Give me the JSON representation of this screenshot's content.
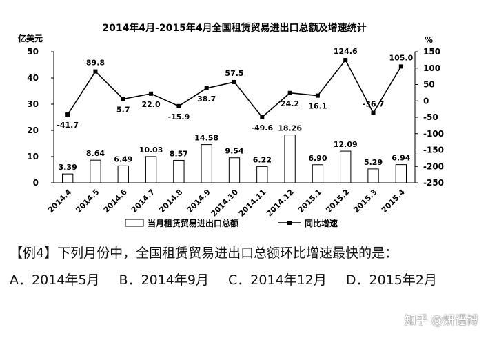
{
  "chart_data": {
    "type": "bar",
    "title": "2014年4月-2015年4月全国租赁贸易进出口总额及增速统计",
    "ylabel_left": "亿美元",
    "ylabel_right": "%",
    "ylim_left": [
      0,
      50
    ],
    "ylim_right": [
      -250,
      150
    ],
    "yticks_left": [
      "0",
      "10",
      "20",
      "30",
      "40",
      "50"
    ],
    "yticks_right": [
      "-250",
      "-200",
      "-150",
      "-100",
      "-50",
      "0",
      "50",
      "100",
      "150"
    ],
    "categories": [
      "2014.4",
      "2014.5",
      "2014.6",
      "2014.7",
      "2014.8",
      "2014.9",
      "2014.10",
      "2014.11",
      "2014.12",
      "2015.1",
      "2015.2",
      "2015.3",
      "2015.4"
    ],
    "series": [
      {
        "name": "当月租赁贸易进出口总额",
        "type": "bar",
        "axis": "left",
        "values": [
          3.39,
          8.64,
          6.49,
          10.03,
          8.57,
          14.58,
          9.54,
          6.22,
          18.26,
          6.9,
          12.09,
          5.29,
          6.94
        ],
        "labels": [
          "3.39",
          "8.64",
          "6.49",
          "10.03",
          "8.57",
          "14.58",
          "9.54",
          "6.22",
          "18.26",
          "6.90",
          "12.09",
          "5.29",
          "6.94"
        ]
      },
      {
        "name": "同比增速",
        "type": "line",
        "axis": "right",
        "values": [
          -41.7,
          89.8,
          5.7,
          22.0,
          -15.9,
          38.7,
          57.5,
          -49.6,
          24.2,
          16.1,
          124.6,
          -36.7,
          105.0
        ],
        "labels": [
          "-41.7",
          "89.8",
          "5.7",
          "22.0",
          "-15.9",
          "38.7",
          "57.5",
          "-49.6",
          "24.2",
          "16.1",
          "124.6",
          "-36.7",
          "105.0"
        ]
      }
    ],
    "legend_placement": "bottom",
    "grid": false,
    "colors": {
      "bar_fill": "#ffffff",
      "bar_stroke": "#000000",
      "line": "#000000"
    }
  },
  "question": {
    "text": "【例4】下列月份中，全国租赁贸易进出口总额环比增速最快的是："
  },
  "options": {
    "a": "A．2014年5月",
    "b": "B．2014年9月",
    "c": "C．2014年12月",
    "d": "D．2015年2月"
  },
  "watermark": "知乎 @妍语博"
}
